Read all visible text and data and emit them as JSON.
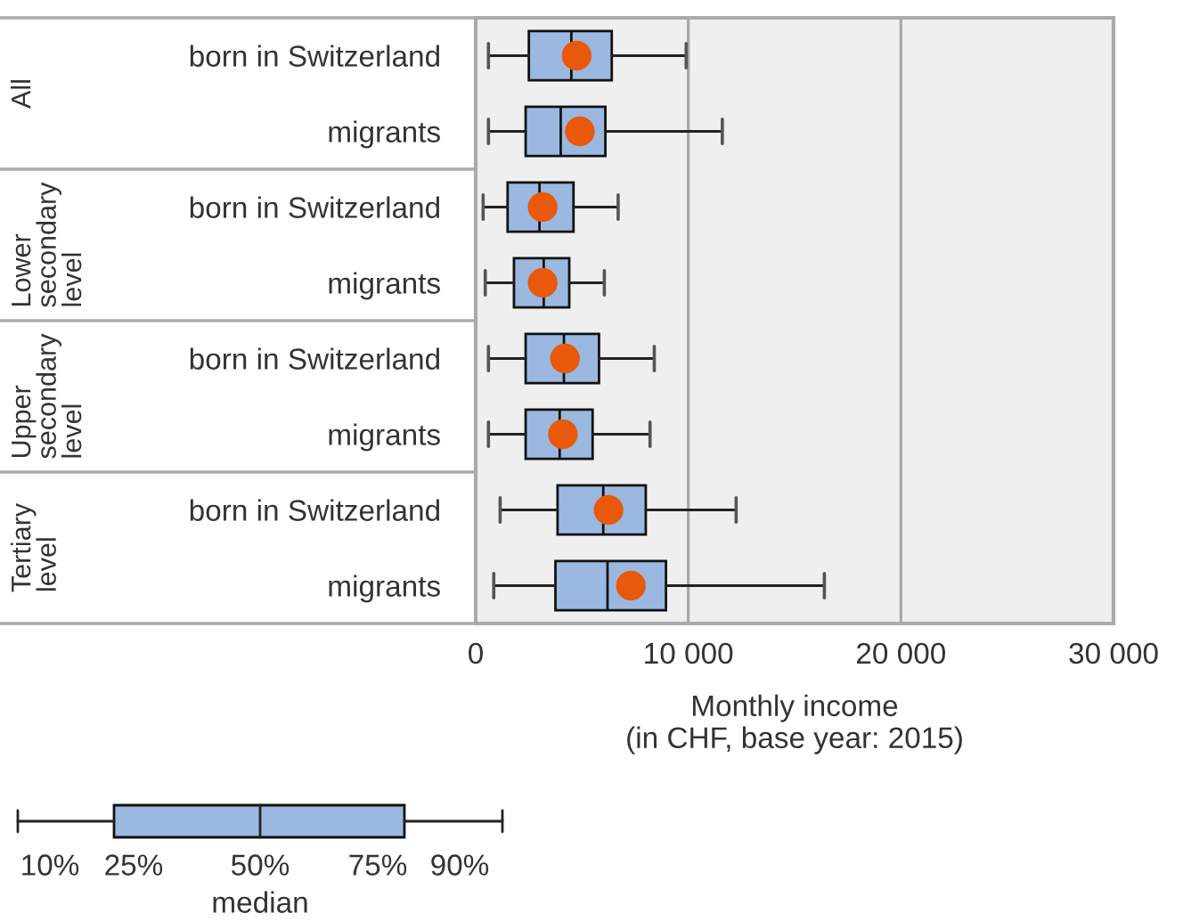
{
  "chart_data": {
    "type": "box",
    "orientation": "horizontal",
    "categories": [
      "born in Switzerland",
      "migrants",
      "born in Switzerland",
      "migrants",
      "born in Switzerland",
      "migrants",
      "born in Switzerland",
      "migrants"
    ],
    "series": [
      {
        "color": "#9bb8e0",
        "boxes": [
          {
            "low": 600,
            "q1": 2500,
            "median": 4500,
            "q3": 6400,
            "high": 9900,
            "mean": 4750
          },
          {
            "low": 600,
            "q1": 2350,
            "median": 4000,
            "q3": 6100,
            "high": 11600,
            "mean": 4900
          },
          {
            "low": 350,
            "q1": 1500,
            "median": 3000,
            "q3": 4600,
            "high": 6700,
            "mean": 3150
          },
          {
            "low": 450,
            "q1": 1800,
            "median": 3200,
            "q3": 4400,
            "high": 6050,
            "mean": 3150
          },
          {
            "low": 600,
            "q1": 2350,
            "median": 4150,
            "q3": 5800,
            "high": 8400,
            "mean": 4200
          },
          {
            "low": 600,
            "q1": 2350,
            "median": 3950,
            "q3": 5500,
            "high": 8200,
            "mean": 4100
          },
          {
            "low": 1150,
            "q1": 3850,
            "median": 6000,
            "q3": 8000,
            "high": 12250,
            "mean": 6250
          },
          {
            "low": 850,
            "q1": 3750,
            "median": 6200,
            "q3": 8950,
            "high": 16400,
            "mean": 7300
          }
        ]
      }
    ],
    "xlabel": "Monthly income\n(in CHF, base year: 2015)",
    "xlim": [
      0,
      30000
    ],
    "xticks": [
      0,
      {
        "value": 10000,
        "label": "10 000"
      },
      {
        "value": 20000,
        "label": "20 000"
      },
      {
        "value": 30000,
        "label": "30 000"
      }
    ],
    "grid": "x",
    "annotations": [
      "All",
      "Lower secondary level",
      "Upper secondary level",
      "Tertiary level",
      "10%",
      "25%",
      "50%",
      "75%",
      "90%",
      "median"
    ]
  }
}
